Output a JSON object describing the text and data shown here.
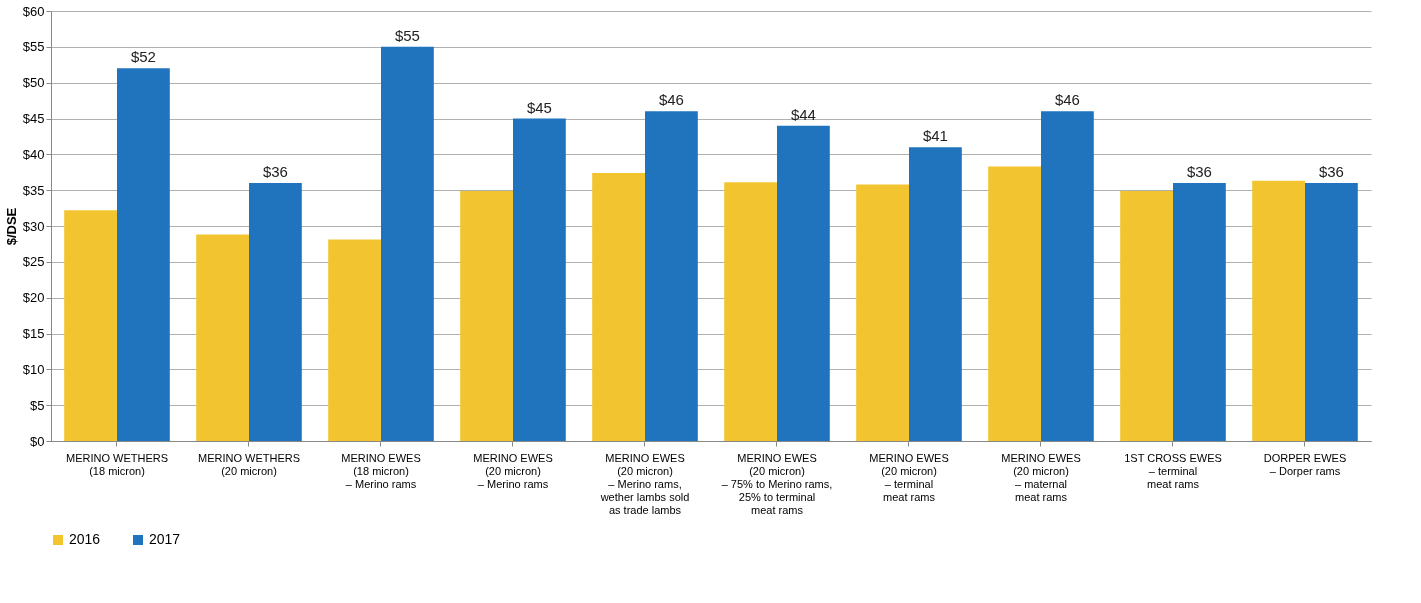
{
  "chart_data": {
    "type": "bar",
    "ylabel": "$/DSE",
    "categories": [
      "MERINO WETHERS\n(18 micron)",
      "MERINO WETHERS\n(20 micron)",
      "MERINO EWES\n(18 micron)\n– Merino rams",
      "MERINO EWES\n(20 micron)\n– Merino rams",
      "MERINO EWES\n(20 micron)\n– Merino rams,\nwether lambs sold\nas trade lambs",
      "MERINO EWES\n(20 micron)\n– 75% to Merino rams,\n25% to terminal\nmeat rams",
      "MERINO EWES\n(20 micron)\n– terminal\nmeat rams",
      "MERINO EWES\n(20 micron)\n– maternal\nmeat rams",
      "1ST CROSS EWES\n– terminal\nmeat rams",
      "DORPER EWES\n– Dorper rams"
    ],
    "series": [
      {
        "name": "2016",
        "color": "#f2c530",
        "values": [
          32.2,
          28.8,
          28.1,
          34.9,
          37.4,
          36.1,
          35.8,
          38.3,
          34.9,
          36.3
        ]
      },
      {
        "name": "2017",
        "color": "#1f74bd",
        "values": [
          52,
          36,
          55,
          45,
          46,
          44,
          41,
          46,
          36,
          36
        ],
        "value_labels": [
          "$52",
          "$36",
          "$55",
          "$45",
          "$46",
          "$44",
          "$41",
          "$46",
          "$36",
          "$36"
        ]
      }
    ],
    "ylim": [
      0,
      60
    ],
    "yticks": [
      {
        "value": 0,
        "label": "$0"
      },
      {
        "value": 5,
        "label": "$5"
      },
      {
        "value": 10,
        "label": "$10"
      },
      {
        "value": 15,
        "label": "$15"
      },
      {
        "value": 20,
        "label": "$20"
      },
      {
        "value": 25,
        "label": "$25"
      },
      {
        "value": 30,
        "label": "$30"
      },
      {
        "value": 35,
        "label": "$35"
      },
      {
        "value": 40,
        "label": "$40"
      },
      {
        "value": 45,
        "label": "$45"
      },
      {
        "value": 50,
        "label": "$50"
      },
      {
        "value": 55,
        "label": "$55"
      },
      {
        "value": 60,
        "label": "$60"
      }
    ],
    "grid": "y",
    "legend": "bottom left"
  }
}
